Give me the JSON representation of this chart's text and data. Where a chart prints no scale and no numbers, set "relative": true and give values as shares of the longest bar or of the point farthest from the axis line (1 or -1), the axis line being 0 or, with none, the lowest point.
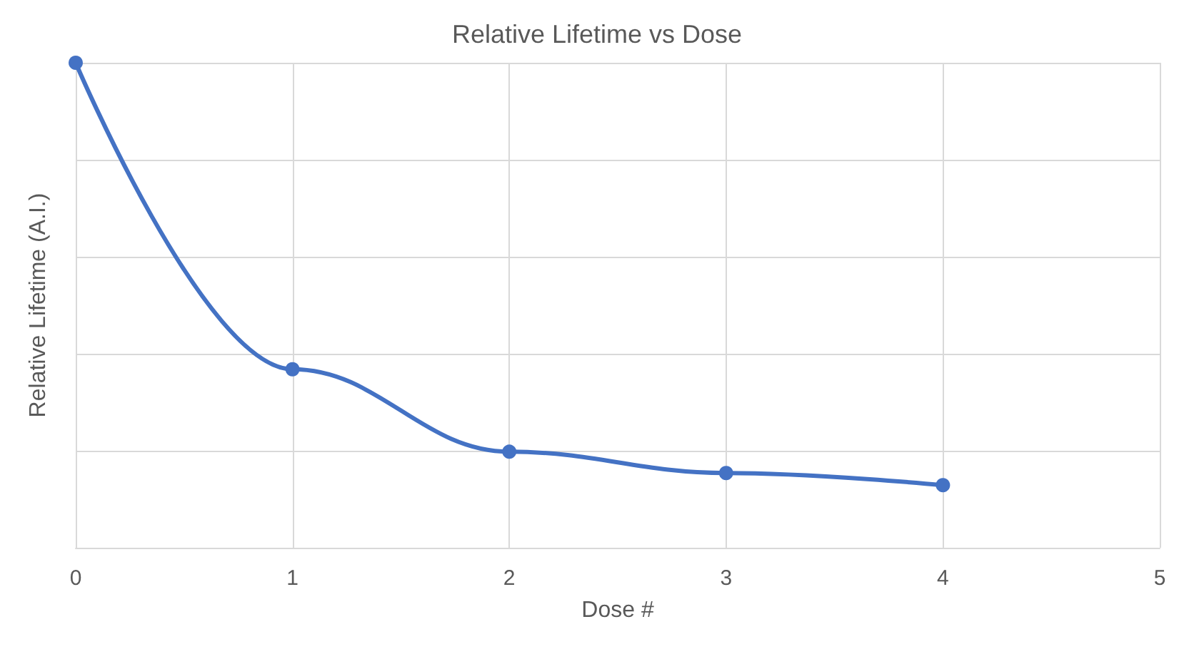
{
  "chart_data": {
    "type": "line",
    "title": "Relative Lifetime vs Dose",
    "xlabel": "Dose #",
    "ylabel": "Relative Lifetime (A.I.)",
    "x": [
      0,
      1,
      2,
      3,
      4
    ],
    "series": [
      {
        "color": "#4472c4",
        "values": [
          1,
          0.368,
          0.198,
          0.154,
          0.129
        ]
      }
    ],
    "xlim": [
      0,
      5
    ],
    "xticks": [
      0,
      1,
      2,
      3,
      4,
      5
    ],
    "relative": true,
    "grid": true,
    "marker": "circle",
    "line_style": "solid"
  }
}
